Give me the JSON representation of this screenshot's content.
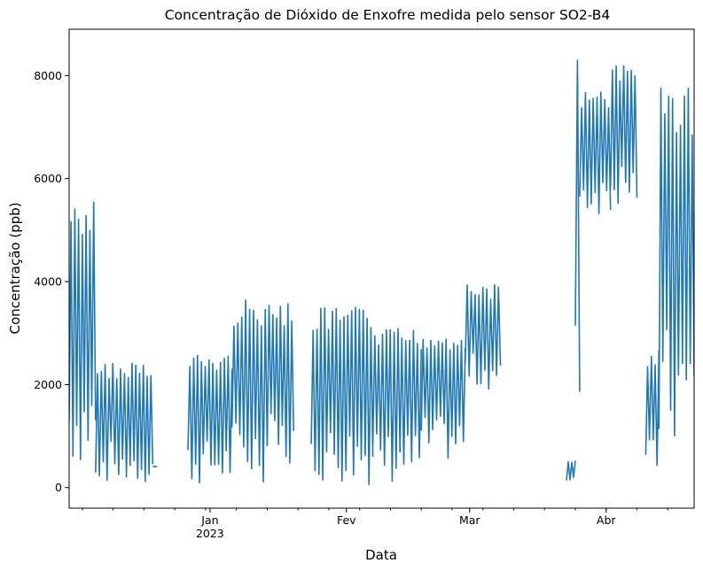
{
  "chart_data": {
    "type": "line",
    "title": "Concentração de Dióxido de Enxofre medida pelo sensor SO2-B4",
    "xlabel": "Data",
    "ylabel": "Concentração (ppb)",
    "x_range": [
      "2022-11-30",
      "2023-04-21"
    ],
    "ylim": [
      -400,
      8900
    ],
    "y_ticks": [
      0,
      2000,
      4000,
      6000,
      8000
    ],
    "x_major_ticks": [
      {
        "date": "2023-01-01",
        "label": "Jan",
        "sublabel": "2023"
      },
      {
        "date": "2023-02-01",
        "label": "Fev",
        "sublabel": ""
      },
      {
        "date": "2023-03-01",
        "label": "Mar",
        "sublabel": ""
      },
      {
        "date": "2023-04-01",
        "label": "Abr",
        "sublabel": ""
      }
    ],
    "grid": false,
    "legend": "none",
    "line_color": "#1f77b4",
    "segments": [
      {
        "start": "2022-11-30",
        "end": "2022-12-06",
        "low": 400,
        "high": 5600
      },
      {
        "start": "2022-12-06",
        "end": "2022-12-13",
        "low": 100,
        "high": 2450
      },
      {
        "start": "2022-12-13",
        "end": "2022-12-19",
        "low": 50,
        "high": 2500
      },
      {
        "start": "2022-12-19",
        "end": "2022-12-20",
        "low": 400,
        "high": 420
      },
      {
        "start": "2022-12-27",
        "end": "2023-01-06",
        "low": 50,
        "high": 2600
      },
      {
        "start": "2023-01-06",
        "end": "2023-01-14",
        "low": 100,
        "high": 3650
      },
      {
        "start": "2023-01-14",
        "end": "2023-01-20",
        "low": 300,
        "high": 3580
      },
      {
        "start": "2023-01-24",
        "end": "2023-02-07",
        "low": 50,
        "high": 3500
      },
      {
        "start": "2023-02-07",
        "end": "2023-02-18",
        "low": 50,
        "high": 3100
      },
      {
        "start": "2023-02-18",
        "end": "2023-02-28",
        "low": 500,
        "high": 3050
      },
      {
        "start": "2023-02-28",
        "end": "2023-03-08",
        "low": 1900,
        "high": 3950
      },
      {
        "start": "2023-03-23",
        "end": "2023-03-25",
        "low": 100,
        "high": 550
      },
      {
        "start": "2023-03-25",
        "end": "2023-03-26",
        "low": 950,
        "high": 8500
      },
      {
        "start": "2023-03-26",
        "end": "2023-04-02",
        "low": 5300,
        "high": 7700
      },
      {
        "start": "2023-04-02",
        "end": "2023-04-08",
        "low": 5400,
        "high": 8200
      },
      {
        "start": "2023-04-10",
        "end": "2023-04-13",
        "low": 50,
        "high": 2700
      },
      {
        "start": "2023-04-13",
        "end": "2023-04-21",
        "low": 600,
        "high": 7900
      }
    ]
  }
}
